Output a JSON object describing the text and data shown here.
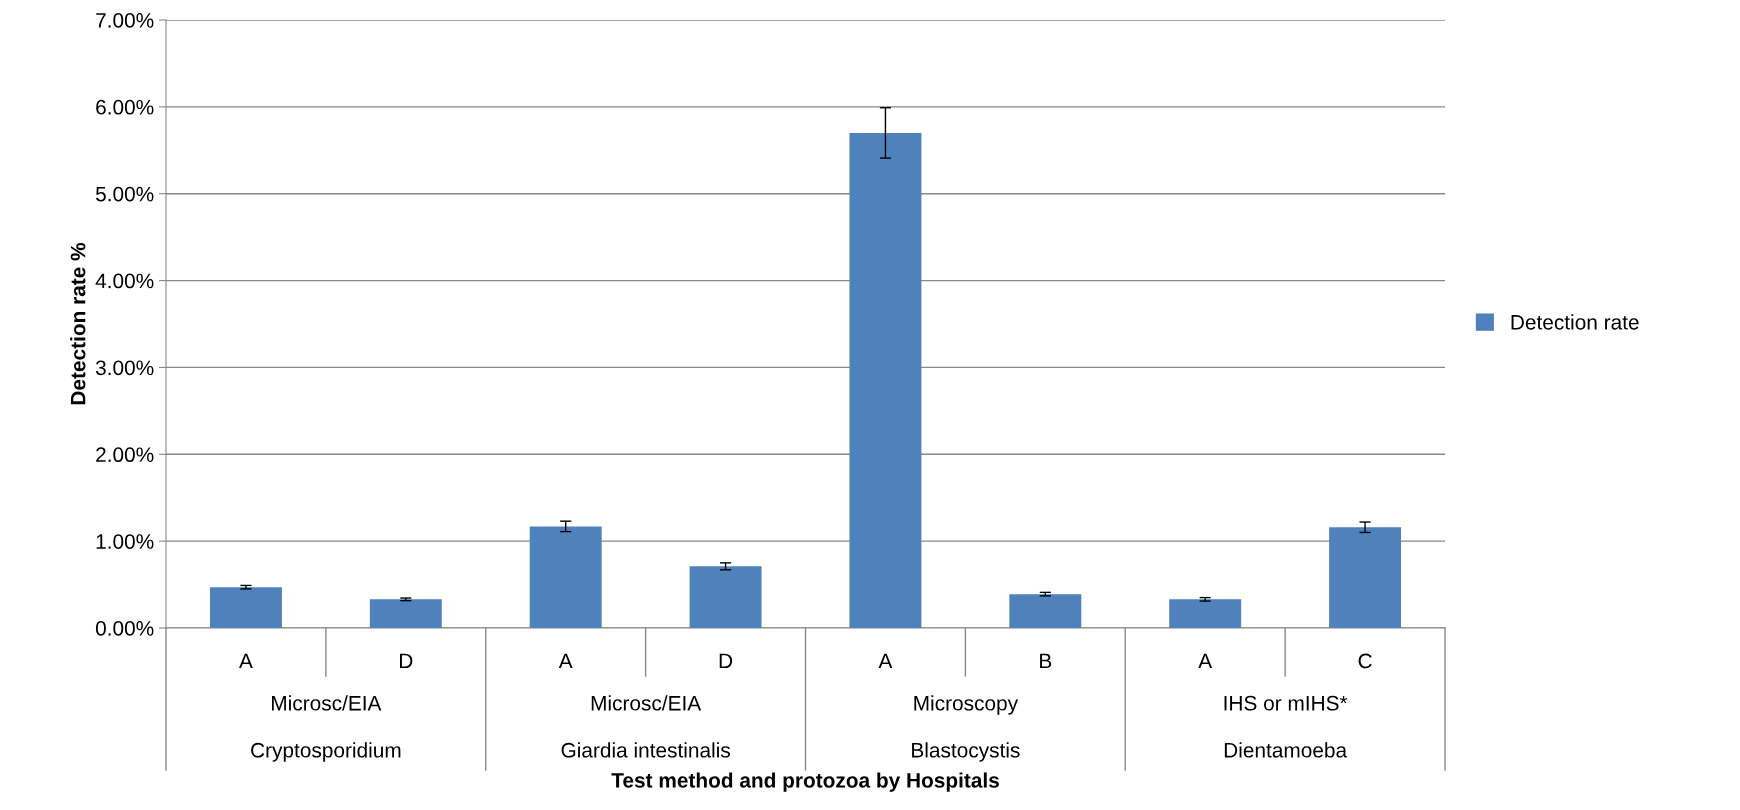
{
  "chart_data": {
    "type": "bar",
    "xlabel": "Test method and protozoa by Hospitals",
    "ylabel": "Detection rate %",
    "categories": [
      "A",
      "D",
      "A",
      "D",
      "A",
      "B",
      "A",
      "C"
    ],
    "series": [
      {
        "name": "Detection rate",
        "color": "#4f81bd",
        "values": [
          0.47,
          0.33,
          1.17,
          0.71,
          5.7,
          0.39,
          0.33,
          1.16
        ],
        "errors": [
          0.02,
          0.015,
          0.06,
          0.04,
          0.29,
          0.02,
          0.02,
          0.06
        ]
      }
    ],
    "ylim": [
      0,
      7
    ],
    "yticks": [
      {
        "value": 0,
        "label": "0.00%"
      },
      {
        "value": 1,
        "label": "1.00%"
      },
      {
        "value": 2,
        "label": "2.00%"
      },
      {
        "value": 3,
        "label": "3.00%"
      },
      {
        "value": 4,
        "label": "4.00%"
      },
      {
        "value": 5,
        "label": "5.00%"
      },
      {
        "value": 6,
        "label": "6.00%"
      },
      {
        "value": 7,
        "label": "7.00%"
      }
    ],
    "annotations": [
      "Microsc/EIA",
      "Microsc/EIA",
      "Microscopy",
      "IHS or mIHS*",
      "Cryptosporidium",
      "Giardia intestinalis",
      "Blastocystis",
      "Dientamoeba"
    ],
    "grid": "y",
    "legend": "right"
  }
}
